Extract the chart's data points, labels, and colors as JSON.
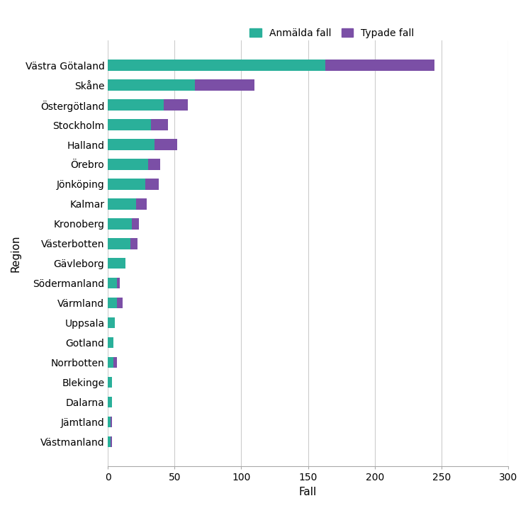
{
  "regions": [
    "Västra Götaland",
    "Skåne",
    "Östergötland",
    "Stockholm",
    "Halland",
    "Örebro",
    "Jönköping",
    "Kalmar",
    "Kronoberg",
    "Västerbotten",
    "Gävleborg",
    "Södermanland",
    "Värmland",
    "Uppsala",
    "Gotland",
    "Norrbotten",
    "Blekinge",
    "Dalarna",
    "Jämtland",
    "Västmanland"
  ],
  "anmalda": [
    163,
    65,
    42,
    32,
    35,
    30,
    28,
    21,
    18,
    17,
    13,
    7,
    7,
    5,
    4,
    4,
    3,
    3,
    2,
    2
  ],
  "typade": [
    82,
    45,
    18,
    13,
    17,
    9,
    10,
    8,
    5,
    5,
    0,
    2,
    4,
    0,
    0,
    3,
    0,
    0,
    1,
    1
  ],
  "color_anmalda": "#2ab09a",
  "color_typade": "#7b4fa6",
  "xlabel": "Fall",
  "ylabel": "Region",
  "xlim": [
    0,
    300
  ],
  "xticks": [
    0,
    50,
    100,
    150,
    200,
    250,
    300
  ],
  "legend_anmalda": "Anmälda fall",
  "legend_typade": "Typade fall",
  "grid_color": "#cccccc",
  "bar_height": 0.55,
  "axis_fontsize": 11,
  "tick_fontsize": 10,
  "legend_fontsize": 10
}
